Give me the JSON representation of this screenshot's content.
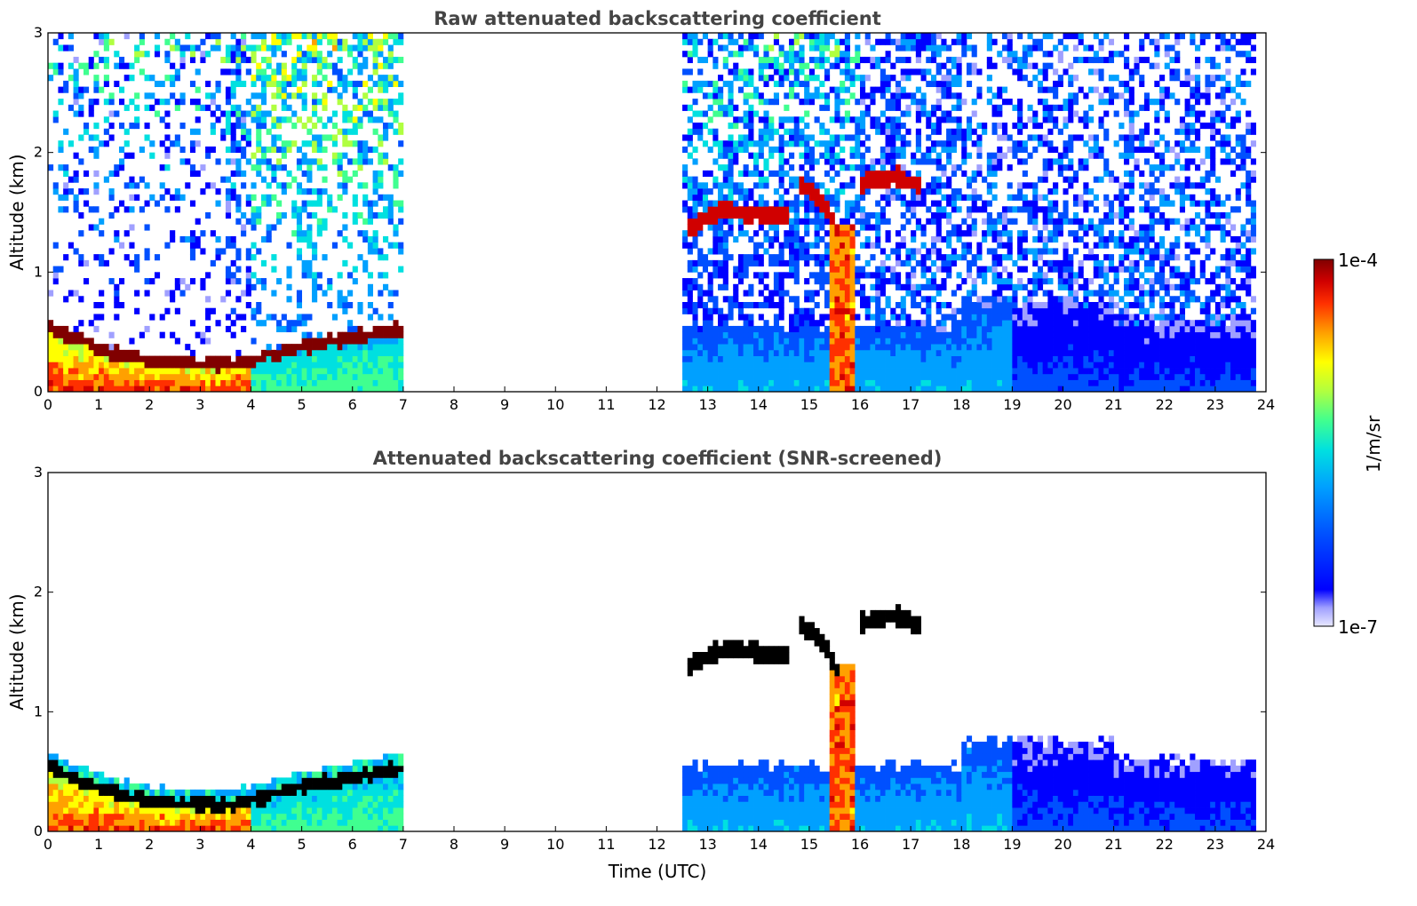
{
  "chart_data": [
    {
      "type": "heatmap",
      "title": "Raw attenuated backscattering coefficient",
      "xlabel": "",
      "ylabel": "Altitude (km)",
      "xlim": [
        0,
        24
      ],
      "ylim": [
        0,
        3
      ],
      "xticks": [
        "0",
        "1",
        "2",
        "3",
        "4",
        "5",
        "6",
        "7",
        "8",
        "9",
        "10",
        "11",
        "12",
        "13",
        "14",
        "15",
        "16",
        "17",
        "18",
        "19",
        "20",
        "21",
        "22",
        "23",
        "24"
      ],
      "yticks": [
        "0",
        "1",
        "2",
        "3"
      ],
      "data_gap_utc": [
        7.05,
        12.55
      ],
      "grid": false,
      "features": [
        {
          "kind": "boundary_layer_top",
          "x": [
            0,
            0.5,
            1,
            1.5,
            2,
            2.5,
            3,
            3.5,
            3.9,
            4.3,
            4.8,
            5.3,
            5.8,
            6.3,
            6.8,
            7.05
          ],
          "y": [
            0.55,
            0.45,
            0.37,
            0.3,
            0.25,
            0.24,
            0.23,
            0.23,
            0.25,
            0.3,
            0.36,
            0.4,
            0.44,
            0.48,
            0.52,
            0.52
          ]
        },
        {
          "kind": "cloud_layer",
          "x": [
            12.6,
            12.9,
            13.3,
            13.8,
            14.2,
            14.6
          ],
          "y": [
            1.35,
            1.45,
            1.52,
            1.5,
            1.48,
            1.47
          ]
        },
        {
          "kind": "cloud_layer",
          "x": [
            14.8,
            15.1,
            15.4,
            15.6
          ],
          "y": [
            1.75,
            1.65,
            1.5,
            1.3
          ]
        },
        {
          "kind": "cloud_layer",
          "x": [
            16.0,
            16.4,
            16.8,
            17.2
          ],
          "y": [
            1.75,
            1.78,
            1.8,
            1.7
          ]
        },
        {
          "kind": "precipitation_column",
          "x": [
            15.45,
            15.85
          ],
          "y": [
            0,
            1.4
          ]
        }
      ]
    },
    {
      "type": "heatmap",
      "title": "Attenuated backscattering coefficient (SNR-screened)",
      "xlabel": "Time (UTC)",
      "ylabel": "Altitude (km)",
      "xlim": [
        0,
        24
      ],
      "ylim": [
        0,
        3
      ],
      "xticks": [
        "0",
        "1",
        "2",
        "3",
        "4",
        "5",
        "6",
        "7",
        "8",
        "9",
        "10",
        "11",
        "12",
        "13",
        "14",
        "15",
        "16",
        "17",
        "18",
        "19",
        "20",
        "21",
        "22",
        "23",
        "24"
      ],
      "yticks": [
        "0",
        "1",
        "2",
        "3"
      ],
      "data_gap_utc": [
        7.05,
        12.55
      ],
      "grid": false
    }
  ],
  "colorbar": {
    "label": "1/m/sr",
    "min_label": "1e-7",
    "max_label": "1e-4",
    "scale": "log",
    "colormap": [
      "#e8e8ff",
      "#a0a0ff",
      "#0000ff",
      "#0050ff",
      "#00a0ff",
      "#00e0e0",
      "#40ff90",
      "#b0ff40",
      "#ffff00",
      "#ffa000",
      "#ff3000",
      "#d00000",
      "#800000"
    ]
  }
}
